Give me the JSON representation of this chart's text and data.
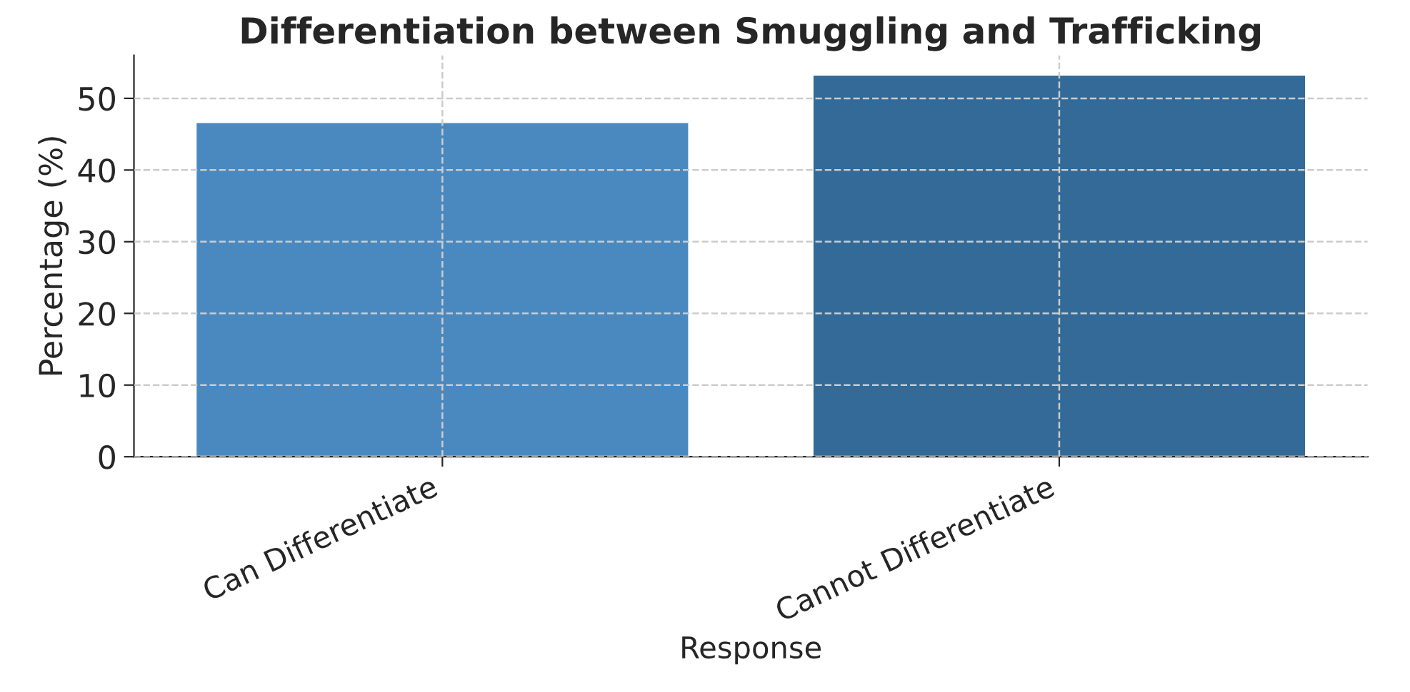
{
  "chart_data": {
    "type": "bar",
    "title": "Differentiation between Smuggling and Trafficking",
    "xlabel": "Response",
    "ylabel": "Percentage (%)",
    "categories": [
      "Can Differentiate",
      "Cannot Differentiate"
    ],
    "values": [
      46.7,
      53.3
    ],
    "colors": [
      "#4a89bf",
      "#336a97"
    ],
    "ylim": [
      0,
      56
    ],
    "yticks": [
      0,
      10,
      20,
      30,
      40,
      50
    ],
    "grid": true
  }
}
